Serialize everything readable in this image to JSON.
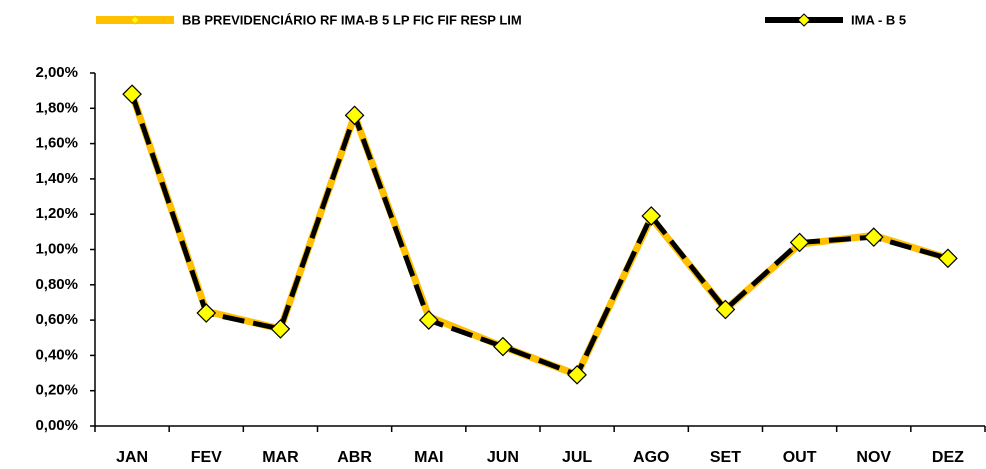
{
  "chart_data": {
    "type": "line",
    "categories": [
      "JAN",
      "FEV",
      "MAR",
      "ABR",
      "MAI",
      "JUN",
      "JUL",
      "AGO",
      "SET",
      "OUT",
      "NOV",
      "DEZ"
    ],
    "series": [
      {
        "name": "BB PREVIDENCIÁRIO RF IMA-B 5 LP FIC FIF RESP LIM",
        "color": "#FFC000",
        "marker_fill": "#FFFF00",
        "values": [
          1.88,
          0.65,
          0.55,
          1.76,
          0.62,
          0.45,
          0.29,
          1.18,
          0.66,
          1.03,
          1.08,
          0.95
        ]
      },
      {
        "name": "IMA - B 5",
        "color": "#000000",
        "marker_fill": "#FFFF00",
        "values": [
          1.88,
          0.64,
          0.55,
          1.76,
          0.6,
          0.45,
          0.29,
          1.19,
          0.66,
          1.04,
          1.07,
          0.95
        ]
      }
    ],
    "ylim": [
      0,
      2
    ],
    "yticks": [
      {
        "value": 0,
        "label": "0,00%"
      },
      {
        "value": 0.2,
        "label": "0,20%"
      },
      {
        "value": 0.4,
        "label": "0,40%"
      },
      {
        "value": 0.6,
        "label": "0,60%"
      },
      {
        "value": 0.8,
        "label": "0,80%"
      },
      {
        "value": 1,
        "label": "1,00%"
      },
      {
        "value": 1.2,
        "label": "1,20%"
      },
      {
        "value": 1.4,
        "label": "1,40%"
      },
      {
        "value": 1.6,
        "label": "1,60%"
      },
      {
        "value": 1.8,
        "label": "1,80%"
      },
      {
        "value": 2,
        "label": "2,00%"
      }
    ],
    "grid": false,
    "legend": "top"
  }
}
